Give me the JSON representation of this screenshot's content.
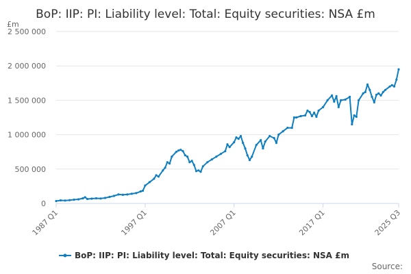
{
  "chart_data": {
    "type": "line",
    "title": "BoP: IIP: PI: Liability level: Total: Equity securities: NSA £m",
    "ylabel": "£m",
    "xlabel": "",
    "ylim": [
      0,
      2500000
    ],
    "yticks": [
      0,
      500000,
      1000000,
      1500000,
      2000000,
      2500000
    ],
    "ytick_labels": [
      "0",
      "500 000",
      "1 000 000",
      "1 500 000",
      "2 000 000",
      "2 500 000"
    ],
    "xticks": [
      "1987 Q1",
      "1997 Q1",
      "2007 Q1",
      "2017 Q1",
      "2025 Q3"
    ],
    "x_range": [
      1987.0,
      2025.5
    ],
    "grid": true,
    "legend_position": "bottom",
    "series": [
      {
        "name": "BoP: IIP: PI: Liability level: Total: Equity securities: NSA £m",
        "color": "#0f7ec0",
        "points": [
          [
            1987.0,
            35000
          ],
          [
            1987.5,
            45000
          ],
          [
            1988.0,
            42000
          ],
          [
            1988.5,
            48000
          ],
          [
            1989.0,
            55000
          ],
          [
            1989.5,
            60000
          ],
          [
            1990.0,
            75000
          ],
          [
            1990.25,
            90000
          ],
          [
            1990.5,
            65000
          ],
          [
            1991.0,
            70000
          ],
          [
            1991.5,
            75000
          ],
          [
            1992.0,
            72000
          ],
          [
            1992.5,
            80000
          ],
          [
            1993.0,
            95000
          ],
          [
            1993.5,
            110000
          ],
          [
            1994.0,
            130000
          ],
          [
            1994.5,
            125000
          ],
          [
            1995.0,
            130000
          ],
          [
            1995.5,
            140000
          ],
          [
            1996.0,
            150000
          ],
          [
            1996.5,
            175000
          ],
          [
            1996.75,
            185000
          ],
          [
            1997.0,
            260000
          ],
          [
            1997.5,
            310000
          ],
          [
            1998.0,
            360000
          ],
          [
            1998.25,
            410000
          ],
          [
            1998.5,
            390000
          ],
          [
            1999.0,
            480000
          ],
          [
            1999.25,
            520000
          ],
          [
            1999.5,
            600000
          ],
          [
            1999.75,
            580000
          ],
          [
            2000.0,
            680000
          ],
          [
            2000.5,
            750000
          ],
          [
            2000.75,
            770000
          ],
          [
            2001.0,
            780000
          ],
          [
            2001.25,
            760000
          ],
          [
            2001.5,
            700000
          ],
          [
            2001.75,
            680000
          ],
          [
            2002.0,
            600000
          ],
          [
            2002.25,
            620000
          ],
          [
            2002.5,
            560000
          ],
          [
            2002.75,
            470000
          ],
          [
            2003.0,
            480000
          ],
          [
            2003.25,
            460000
          ],
          [
            2003.5,
            540000
          ],
          [
            2004.0,
            600000
          ],
          [
            2004.5,
            640000
          ],
          [
            2005.0,
            680000
          ],
          [
            2005.5,
            720000
          ],
          [
            2006.0,
            760000
          ],
          [
            2006.25,
            860000
          ],
          [
            2006.5,
            820000
          ],
          [
            2007.0,
            890000
          ],
          [
            2007.25,
            960000
          ],
          [
            2007.5,
            940000
          ],
          [
            2007.75,
            980000
          ],
          [
            2008.0,
            880000
          ],
          [
            2008.25,
            800000
          ],
          [
            2008.5,
            700000
          ],
          [
            2008.75,
            630000
          ],
          [
            2009.0,
            680000
          ],
          [
            2009.5,
            850000
          ],
          [
            2010.0,
            920000
          ],
          [
            2010.25,
            800000
          ],
          [
            2010.5,
            900000
          ],
          [
            2011.0,
            980000
          ],
          [
            2011.5,
            950000
          ],
          [
            2011.75,
            880000
          ],
          [
            2012.0,
            1000000
          ],
          [
            2012.5,
            1050000
          ],
          [
            2013.0,
            1100000
          ],
          [
            2013.5,
            1100000
          ],
          [
            2013.75,
            1250000
          ],
          [
            2014.0,
            1250000
          ],
          [
            2014.5,
            1270000
          ],
          [
            2015.0,
            1280000
          ],
          [
            2015.25,
            1350000
          ],
          [
            2015.5,
            1330000
          ],
          [
            2015.75,
            1270000
          ],
          [
            2016.0,
            1320000
          ],
          [
            2016.25,
            1260000
          ],
          [
            2016.5,
            1350000
          ],
          [
            2017.0,
            1400000
          ],
          [
            2017.5,
            1500000
          ],
          [
            2018.0,
            1570000
          ],
          [
            2018.25,
            1480000
          ],
          [
            2018.5,
            1560000
          ],
          [
            2018.75,
            1400000
          ],
          [
            2019.0,
            1500000
          ],
          [
            2019.5,
            1510000
          ],
          [
            2020.0,
            1550000
          ],
          [
            2020.25,
            1150000
          ],
          [
            2020.5,
            1280000
          ],
          [
            2020.75,
            1260000
          ],
          [
            2021.0,
            1500000
          ],
          [
            2021.5,
            1600000
          ],
          [
            2021.75,
            1620000
          ],
          [
            2022.0,
            1730000
          ],
          [
            2022.25,
            1650000
          ],
          [
            2022.5,
            1550000
          ],
          [
            2022.75,
            1470000
          ],
          [
            2023.0,
            1580000
          ],
          [
            2023.25,
            1600000
          ],
          [
            2023.5,
            1570000
          ],
          [
            2023.75,
            1620000
          ],
          [
            2024.0,
            1650000
          ],
          [
            2024.5,
            1700000
          ],
          [
            2024.75,
            1720000
          ],
          [
            2025.0,
            1700000
          ],
          [
            2025.25,
            1800000
          ],
          [
            2025.5,
            1950000
          ]
        ]
      }
    ]
  },
  "footer": {
    "source_label": "Source:"
  }
}
